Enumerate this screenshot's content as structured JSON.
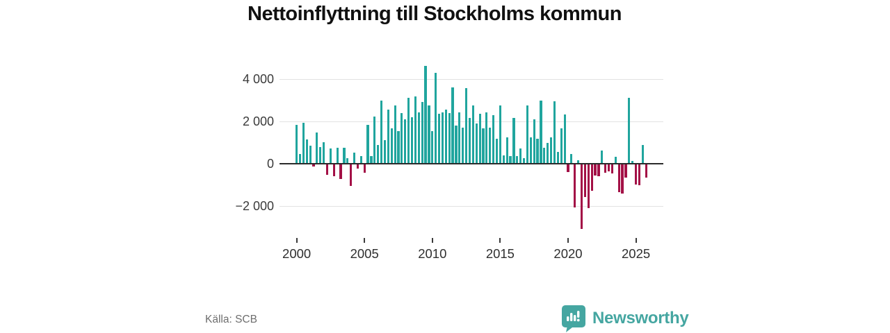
{
  "title": "Nettoinflyttning till Stockholms kommun",
  "source": "Källa: SCB",
  "branding": {
    "name": "Newsworthy",
    "color": "#45a6a1"
  },
  "chart_data": {
    "type": "bar",
    "title": "Nettoinflyttning till Stockholms kommun",
    "frequency": "quarterly",
    "start_year": 2000,
    "end_year": 2025,
    "grid": "horizontal",
    "ylim": [
      -3400,
      4800
    ],
    "y_ticks": [
      {
        "value": 4000,
        "label": "4 000"
      },
      {
        "value": 2000,
        "label": "2 000"
      },
      {
        "value": 0,
        "label": "0"
      },
      {
        "value": -2000,
        "label": "−2 000"
      }
    ],
    "x_tick_years": [
      2000,
      2005,
      2010,
      2015,
      2020,
      2025
    ],
    "x_tick_labels": [
      "2000",
      "2005",
      "2010",
      "2015",
      "2020",
      "2025"
    ],
    "colors": {
      "positive": "#20a59e",
      "negative": "#a31046"
    },
    "values": [
      1850,
      470,
      1930,
      1150,
      850,
      -130,
      1470,
      790,
      1010,
      -510,
      720,
      -600,
      740,
      -730,
      740,
      250,
      -1050,
      540,
      -240,
      360,
      -420,
      1840,
      360,
      2220,
      900,
      2980,
      1120,
      2550,
      1680,
      2740,
      1550,
      2400,
      2090,
      3120,
      2200,
      3180,
      2420,
      2910,
      4620,
      2740,
      1550,
      4300,
      2360,
      2440,
      2550,
      2390,
      3610,
      1790,
      2440,
      1710,
      3580,
      2150,
      2740,
      1900,
      2360,
      1680,
      2420,
      1710,
      2310,
      1170,
      2740,
      380,
      1230,
      360,
      2150,
      360,
      710,
      250,
      2740,
      1230,
      2110,
      1190,
      2980,
      760,
      980,
      1230,
      2940,
      550,
      1660,
      2330,
      -380,
      470,
      -2060,
      180,
      -3080,
      -1590,
      -2100,
      -1270,
      -560,
      -600,
      610,
      -420,
      -350,
      -460,
      330,
      -1360,
      -1410,
      -650,
      3100,
      140,
      -980,
      -1030,
      900,
      -650
    ]
  }
}
